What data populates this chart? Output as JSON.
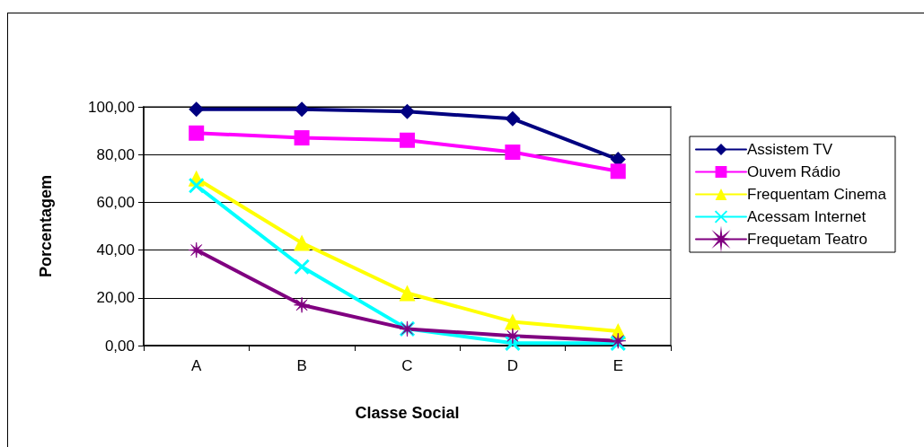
{
  "chart_data": {
    "type": "line",
    "xlabel": "Classe Social",
    "ylabel": "Porcentagem",
    "categories": [
      "A",
      "B",
      "C",
      "D",
      "E"
    ],
    "series": [
      {
        "name": "Assistem TV",
        "color": "#000080",
        "marker": "diamond",
        "values": [
          99,
          99,
          98,
          95,
          78
        ]
      },
      {
        "name": "Ouvem Rádio",
        "color": "#ff00ff",
        "marker": "square",
        "values": [
          89,
          87,
          86,
          81,
          73
        ]
      },
      {
        "name": "Frequentam Cinema",
        "color": "#ffff00",
        "marker": "triangle",
        "values": [
          70,
          43,
          22,
          10,
          6
        ]
      },
      {
        "name": "Acessam Internet",
        "color": "#00ffff",
        "marker": "cross",
        "values": [
          67,
          33,
          7,
          1,
          1
        ]
      },
      {
        "name": "Frequetam Teatro",
        "color": "#800080",
        "marker": "star",
        "values": [
          40,
          17,
          7,
          4,
          2
        ]
      }
    ],
    "ylim": [
      0,
      100
    ],
    "yticks": [
      {
        "value": 0,
        "label": "0,00"
      },
      {
        "value": 20,
        "label": "20,00"
      },
      {
        "value": 40,
        "label": "40,00"
      },
      {
        "value": 60,
        "label": "60,00"
      },
      {
        "value": 80,
        "label": "80,00"
      },
      {
        "value": 100,
        "label": "100,00"
      }
    ],
    "grid": "y",
    "legend": "right"
  }
}
